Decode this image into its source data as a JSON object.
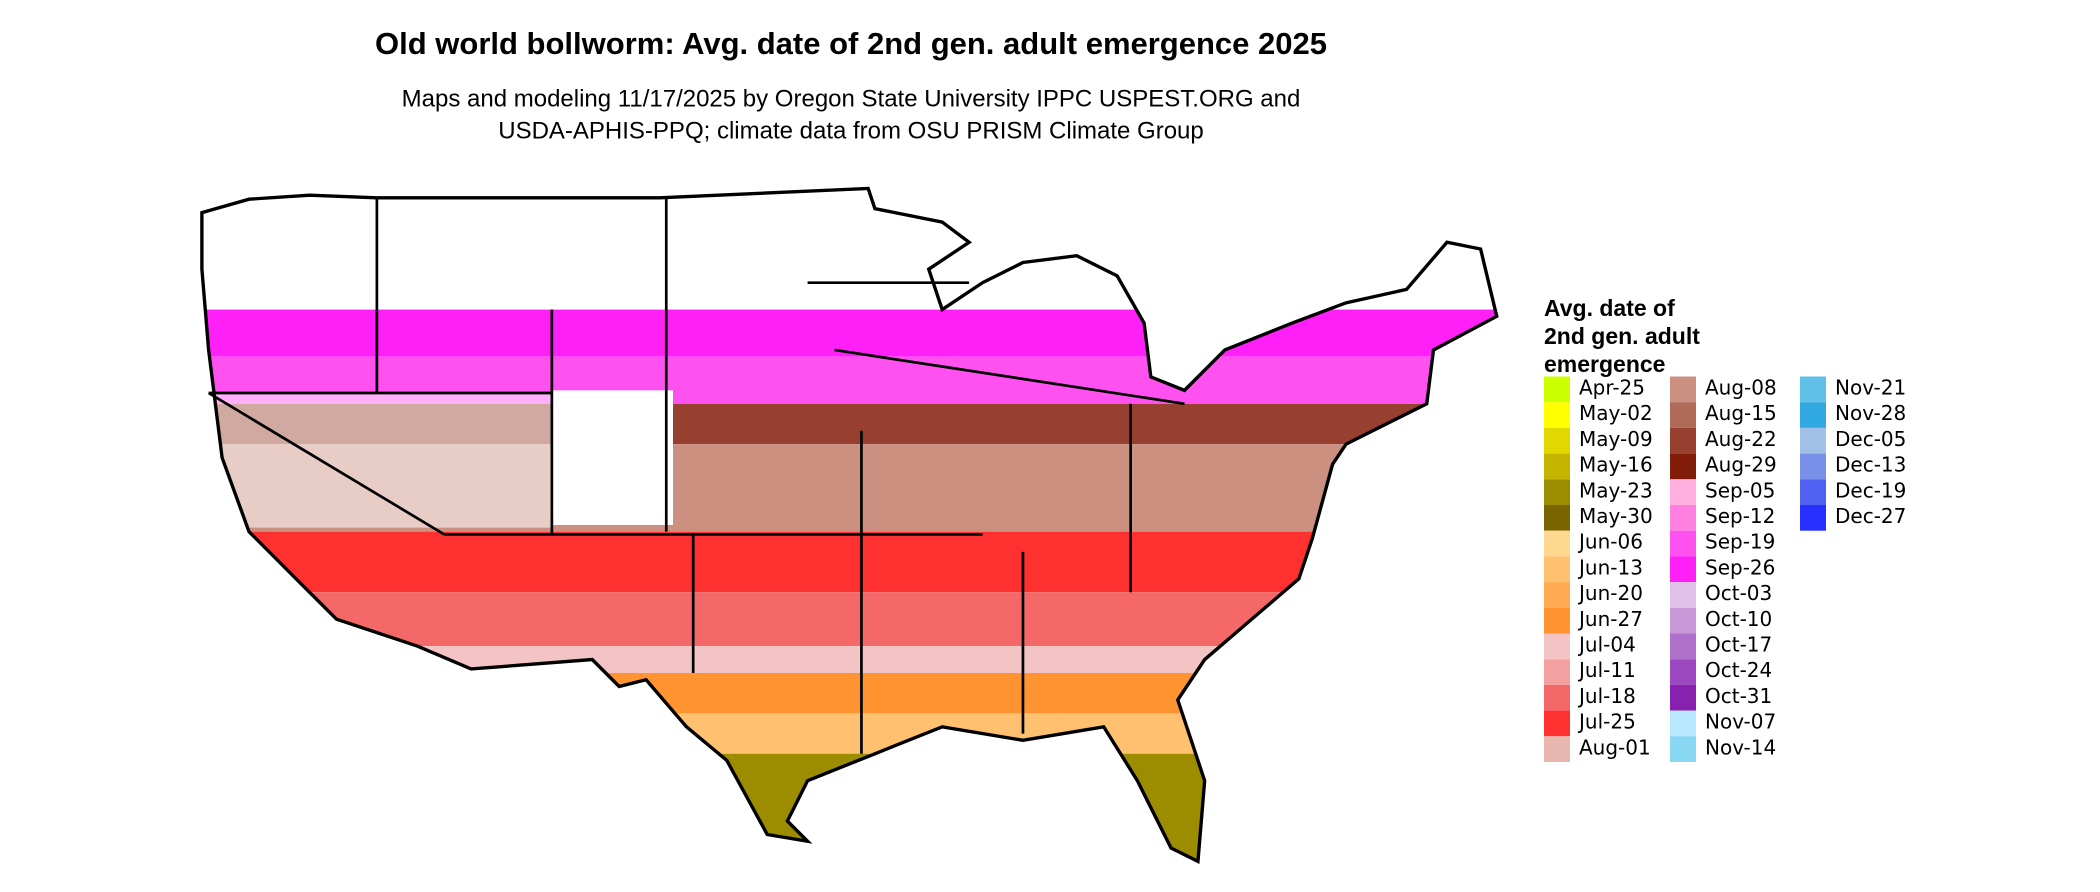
{
  "header": {
    "title": "Old world bollworm: Avg. date of 2nd gen. adult emergence 2025",
    "subtitle_lines": [
      "Maps and modeling 11/17/2025 by Oregon State University IPPC USPEST.ORG and",
      "USDA-APHIS-PPQ; climate data from OSU PRISM Climate Group"
    ]
  },
  "legend": {
    "title_lines": [
      "Avg. date of",
      "2nd gen. adult",
      "emergence"
    ],
    "columns": [
      15,
      15,
      6
    ],
    "items": [
      {
        "label": "Apr-25",
        "color": "#ccff00"
      },
      {
        "label": "May-02",
        "color": "#ffff00"
      },
      {
        "label": "May-09",
        "color": "#e0d800"
      },
      {
        "label": "May-16",
        "color": "#c4b400"
      },
      {
        "label": "May-23",
        "color": "#9c8c00"
      },
      {
        "label": "May-30",
        "color": "#7a6400"
      },
      {
        "label": "Jun-06",
        "color": "#ffd890"
      },
      {
        "label": "Jun-13",
        "color": "#ffc070"
      },
      {
        "label": "Jun-20",
        "color": "#ffaa50"
      },
      {
        "label": "Jun-27",
        "color": "#ff9430"
      },
      {
        "label": "Jul-04",
        "color": "#f4c4c4"
      },
      {
        "label": "Jul-11",
        "color": "#f4a0a0"
      },
      {
        "label": "Jul-18",
        "color": "#f46868"
      },
      {
        "label": "Jul-25",
        "color": "#ff3030"
      },
      {
        "label": "Aug-01",
        "color": "#e8b8b0"
      },
      {
        "label": "Aug-08",
        "color": "#cc9080"
      },
      {
        "label": "Aug-15",
        "color": "#b06a58"
      },
      {
        "label": "Aug-22",
        "color": "#984030"
      },
      {
        "label": "Aug-29",
        "color": "#801c08"
      },
      {
        "label": "Sep-05",
        "color": "#ffb0e0"
      },
      {
        "label": "Sep-12",
        "color": "#ff80e0"
      },
      {
        "label": "Sep-19",
        "color": "#ff50f0"
      },
      {
        "label": "Sep-26",
        "color": "#ff20f8"
      },
      {
        "label": "Oct-03",
        "color": "#e0c0e8"
      },
      {
        "label": "Oct-10",
        "color": "#c898d8"
      },
      {
        "label": "Oct-17",
        "color": "#b070cc"
      },
      {
        "label": "Oct-24",
        "color": "#9c48c0"
      },
      {
        "label": "Oct-31",
        "color": "#8820b0"
      },
      {
        "label": "Nov-07",
        "color": "#b8e8ff"
      },
      {
        "label": "Nov-14",
        "color": "#88d8f4"
      },
      {
        "label": "Nov-21",
        "color": "#60c0e8"
      },
      {
        "label": "Nov-28",
        "color": "#30a8e0"
      },
      {
        "label": "Dec-05",
        "color": "#a0c0e8"
      },
      {
        "label": "Dec-13",
        "color": "#7890e8"
      },
      {
        "label": "Dec-19",
        "color": "#5060f0"
      },
      {
        "label": "Dec-27",
        "color": "#2830ff"
      }
    ]
  }
}
